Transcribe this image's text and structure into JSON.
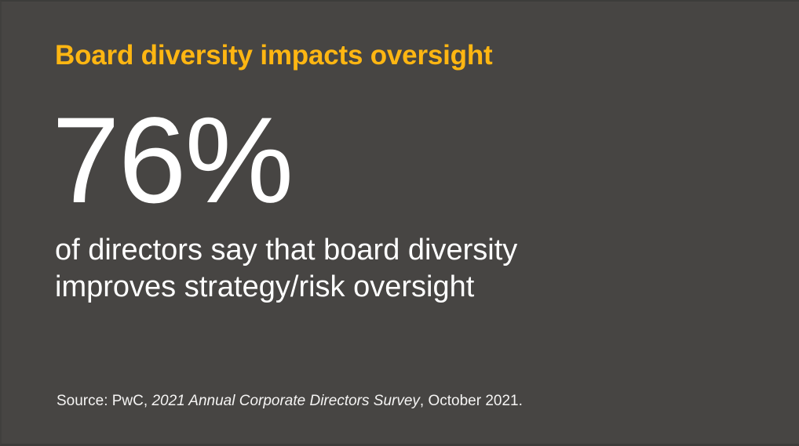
{
  "slide": {
    "title": "Board diversity impacts oversight",
    "stat": {
      "value": "76%"
    },
    "description": {
      "line1": "of directors say that board diversity",
      "line2": "improves strategy/risk oversight"
    },
    "source": {
      "prefix": "Source: PwC, ",
      "publication_italic": "2021 Annual Corporate Directors Survey",
      "suffix": ", October 2021."
    },
    "colors": {
      "background": "#474543",
      "accent_yellow": "#FFB612",
      "text_white": "#FFFFFF"
    }
  }
}
